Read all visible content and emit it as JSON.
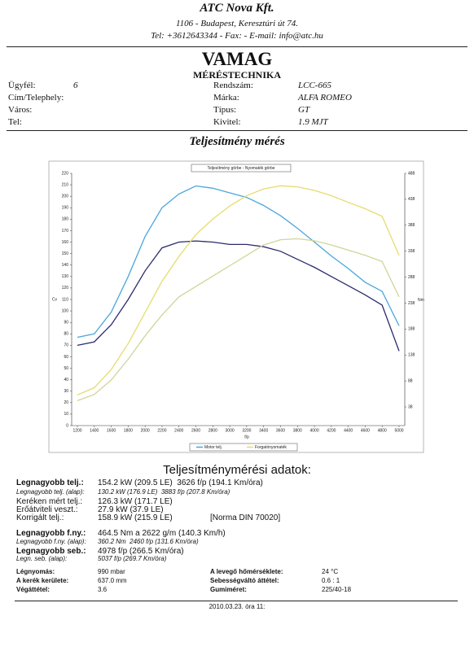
{
  "header": {
    "company": "ATC Nova Kft.",
    "address": "1106 - Budapest, Keresztúri út 74.",
    "contact": "Tel: +3612643344 - Fax: - E-mail: info@atc.hu"
  },
  "title": "VAMAG",
  "subtitle": "MÉRÉSTECHNIKA",
  "customer": [
    {
      "label": "Ügyfél:",
      "value": "6"
    },
    {
      "label": "Cím/Telephely:"
    },
    {
      "label": "Város:"
    },
    {
      "label": "Tel:"
    }
  ],
  "vehicle": [
    {
      "label": "Rendszám:",
      "value": "LCC-665"
    },
    {
      "label": "Márka:",
      "value": "ALFA ROMEO"
    },
    {
      "label": "Típus:",
      "value": "GT"
    },
    {
      "label": "Kivitel:",
      "value": "1.9 MJT"
    }
  ],
  "section_title": "Teljesítmény mérés",
  "chart_data": {
    "type": "line",
    "title": "Teljesítmény görbe - Nyomaték görbe",
    "xlabel": "f/p",
    "ylabel": "Cv",
    "y2label": "Nm",
    "x": [
      1200,
      1400,
      1600,
      1800,
      2000,
      2200,
      2400,
      2600,
      2800,
      3000,
      3200,
      3400,
      3600,
      3800,
      4000,
      4200,
      4400,
      4600,
      4800,
      5000
    ],
    "xlim": [
      1200,
      5000
    ],
    "xticks": [
      1200,
      1400,
      1600,
      1800,
      2000,
      2200,
      2400,
      2600,
      2800,
      3000,
      3200,
      3400,
      3600,
      3800,
      4000,
      4200,
      4400,
      4600,
      4800,
      5000
    ],
    "ylim": [
      0,
      220
    ],
    "yticks": [
      0,
      10,
      20,
      30,
      40,
      50,
      60,
      70,
      80,
      90,
      100,
      110,
      120,
      130,
      140,
      150,
      160,
      170,
      180,
      190,
      200,
      210,
      220
    ],
    "y2lim": [
      2,
      488
    ],
    "y2ticks": [
      38,
      88,
      138,
      188,
      238,
      288,
      338,
      388,
      438,
      488
    ],
    "series": [
      {
        "name": "Motor telj.",
        "color": "#4aa6dc",
        "values": [
          77,
          80,
          99,
          130,
          165,
          190,
          202,
          209,
          207,
          203,
          199,
          192,
          183,
          172,
          160,
          148,
          137,
          125,
          117,
          87
        ]
      },
      {
        "color": "#2b2b6e",
        "values": [
          70,
          73,
          88,
          110,
          135,
          155,
          160,
          161,
          160,
          158,
          158,
          156,
          152,
          145,
          138,
          130,
          122,
          114,
          105,
          65
        ]
      },
      {
        "name": "Forgatónyomaték",
        "color": "#e6dc6e",
        "axis": "y2",
        "values": [
          61,
          75,
          110,
          160,
          220,
          280,
          328,
          370,
          400,
          425,
          445,
          458,
          464,
          462,
          455,
          445,
          432,
          420,
          405,
          330
        ]
      },
      {
        "color": "#cfd59a",
        "axis": "y2",
        "values": [
          50,
          62,
          90,
          130,
          175,
          215,
          250,
          270,
          290,
          310,
          330,
          350,
          360,
          362,
          358,
          350,
          340,
          330,
          318,
          250
        ]
      }
    ]
  },
  "results": {
    "title": "Teljesítménymérési adatok:",
    "rows": [
      {
        "label": "Legnagyobb telj.:",
        "value": "154.2 kW (209.5 LE)  3626 f/p (194.1 Km/óra)",
        "style": "bold"
      },
      {
        "label": "Legnagyobb telj. (alap):",
        "value": "130.2 kW (176.9 LE)  3883 f/p (207.8 Km/óra)",
        "style": "small"
      },
      {
        "label": "Keréken mért telj.:",
        "value": "126.3 kW (171.7 LE)",
        "style": "plain"
      },
      {
        "label": "Erőátviteli veszt.:",
        "value": "27.9 kW (37.9 LE)",
        "style": "plain"
      },
      {
        "label": "Korrigált telj.:",
        "value": "158.9 kW (215.9 LE)",
        "note": "[Norma DIN 70020]",
        "style": "plain"
      },
      {
        "label": "Legnagyobb f.ny.:",
        "value": "464.5 Nm a 2622 g/m (140.3 Km/h)",
        "style": "bold"
      },
      {
        "label": "Legnagyobb f.ny. (alap):",
        "value": "360.2 Nm  2460 f/p (131.6 Km/óra)",
        "style": "small"
      },
      {
        "label": "Legnagyobb seb.:",
        "value": "4978 f/p (266.5 Km/óra)",
        "style": "bold"
      },
      {
        "label": "Legn. seb. (alap):",
        "value": "5037 f/p (269.7 Km/óra)",
        "style": "small"
      }
    ]
  },
  "conditions": [
    {
      "label": "Légnyomás:",
      "value": "990 mbar"
    },
    {
      "label": "A kerék kerülete:",
      "value": "637.0 mm"
    },
    {
      "label": "Végáttétel:",
      "value": "3.6"
    },
    {
      "label": "A levegő hőmérséklete:",
      "value": "24 °C"
    },
    {
      "label": "Sebességváltó áttétel:",
      "value": "0.6 : 1"
    },
    {
      "label": "Gumiméret:",
      "value": "225/40-18"
    }
  ],
  "footer": "2010.03.23. óra 11:"
}
